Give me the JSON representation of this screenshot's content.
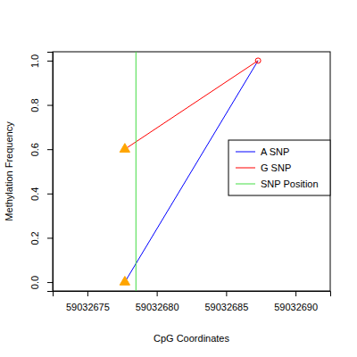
{
  "chart_data": {
    "type": "line",
    "x_label": "CpG Coordinates",
    "y_label": "Methylation Frequency",
    "xlim": [
      59032672.5,
      59032692.5
    ],
    "xticks": [
      59032675,
      59032680,
      59032685,
      59032690
    ],
    "ylim": [
      -0.04,
      1.04
    ],
    "yticks": [
      {
        "value": 0,
        "label": "0.0"
      },
      {
        "value": 0.2,
        "label": "0.2"
      },
      {
        "value": 0.4,
        "label": "0.4"
      },
      {
        "value": 0.6,
        "label": "0.6"
      },
      {
        "value": 0.8,
        "label": "0.8"
      },
      {
        "value": 1,
        "label": "1.0"
      }
    ],
    "legend": "right",
    "series": [
      {
        "name": "A SNP",
        "type": "line",
        "color": "#0000ff",
        "x": [
          59032677.7,
          59032687.3
        ],
        "values": [
          0,
          1
        ]
      },
      {
        "name": "G SNP",
        "type": "line",
        "color": "#ff0000",
        "x": [
          59032677.7,
          59032687.3
        ],
        "values": [
          0.6,
          1
        ]
      },
      {
        "type": "scatter",
        "marker": "triangle",
        "color": "#ffa500",
        "x": [
          59032677.7,
          59032677.7
        ],
        "values": [
          0,
          0.6
        ]
      },
      {
        "type": "scatter",
        "marker": "circle",
        "color": "#ff0000",
        "x": [
          59032687.3
        ],
        "values": [
          1
        ]
      },
      {
        "name": "SNP Position",
        "type": "vline",
        "color": "#44dd44",
        "x": [
          59032678.5
        ]
      }
    ]
  }
}
